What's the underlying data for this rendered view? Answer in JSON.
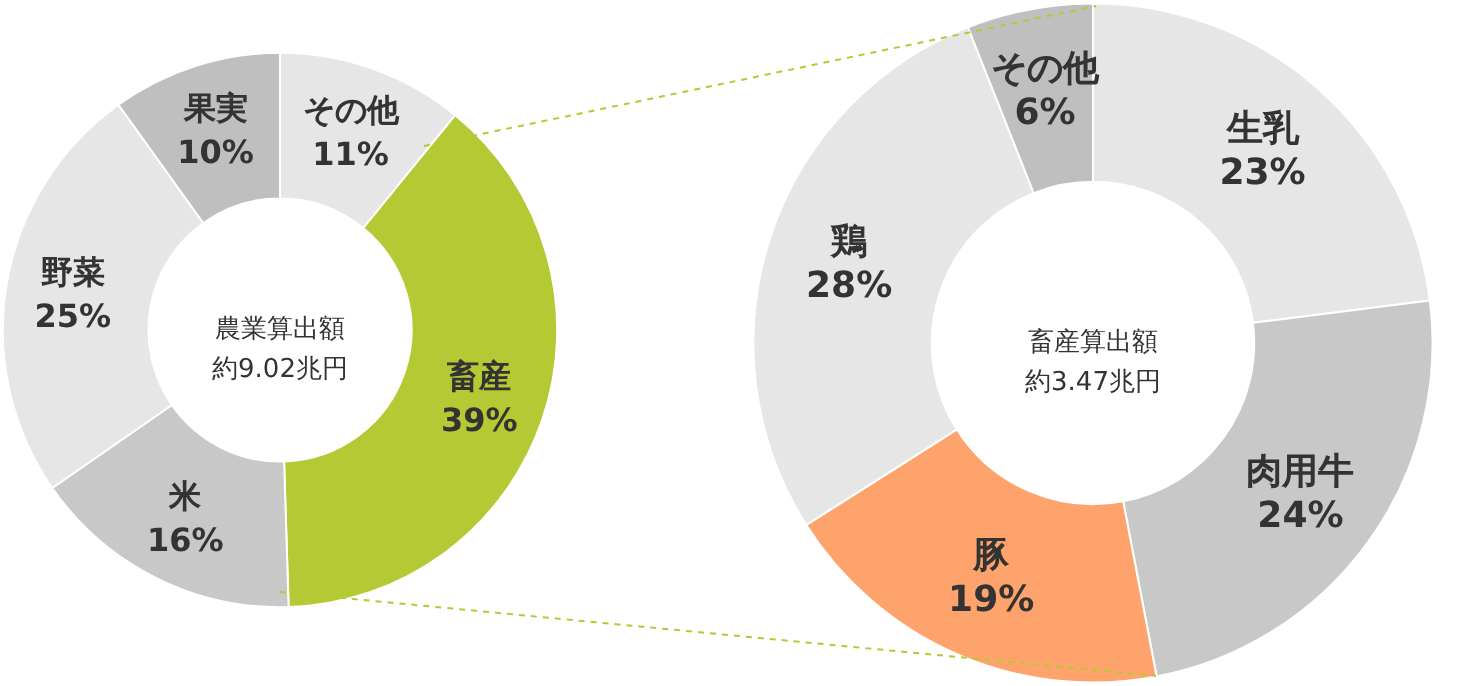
{
  "chart_data": [
    {
      "type": "donut",
      "title": "農業算出額",
      "subtitle": "約9.02兆円",
      "categories": [
        "その他",
        "畜産",
        "米",
        "野菜",
        "果実"
      ],
      "values": [
        11,
        39,
        16,
        25,
        10
      ],
      "value_labels": [
        "11%",
        "39%",
        "16%",
        "25%",
        "10%"
      ],
      "colors": [
        "#e6e6e6",
        "#b5c934",
        "#c8c8c8",
        "#e6e6e6",
        "#bfbfbf"
      ]
    },
    {
      "type": "donut",
      "title": "畜産算出額",
      "subtitle": "約3.47兆円",
      "categories": [
        "生乳",
        "肉用牛",
        "豚",
        "鶏",
        "その他"
      ],
      "values": [
        23,
        24,
        19,
        28,
        6
      ],
      "value_labels": [
        "23%",
        "24%",
        "19%",
        "28%",
        "6%"
      ],
      "colors": [
        "#e6e6e6",
        "#c8c8c8",
        "#ffa36c",
        "#e6e6e6",
        "#bfbfbf"
      ]
    }
  ]
}
